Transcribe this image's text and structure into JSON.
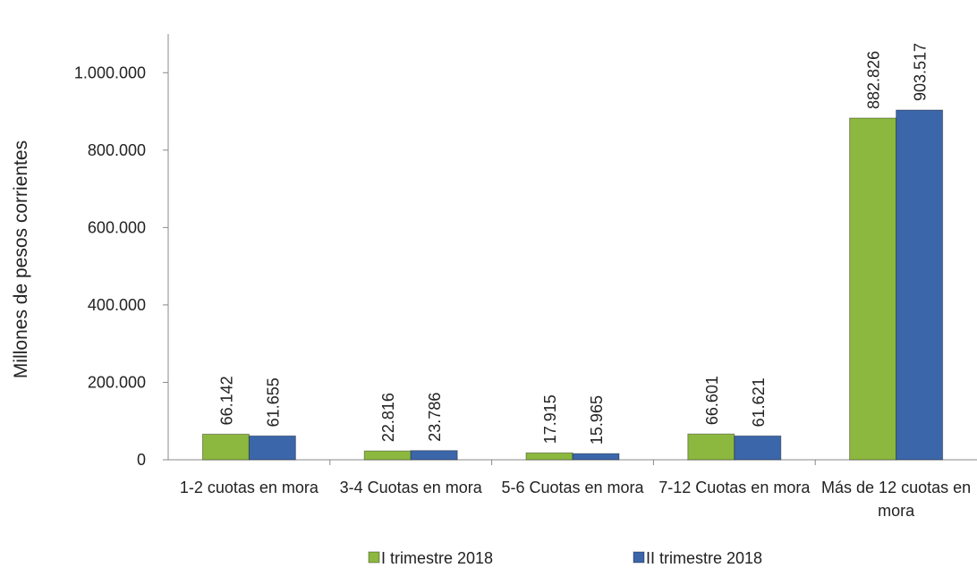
{
  "chart_data": {
    "type": "bar",
    "ylabel": "Millones de pesos corrientes",
    "categories": [
      "1-2 cuotas en mora",
      "3-4 Cuotas en mora",
      "5-6 Cuotas en mora",
      "7-12 Cuotas en mora",
      "Más de 12 cuotas en mora"
    ],
    "series": [
      {
        "name": "I trimestre 2018",
        "color": "#8db83f",
        "values": [
          66142,
          22816,
          17915,
          66601,
          882826
        ],
        "value_labels": [
          "66.142",
          "22.816",
          "17.915",
          "66.601",
          "882.826"
        ]
      },
      {
        "name": "II trimestre 2018",
        "color": "#3c66aa",
        "values": [
          61655,
          23786,
          15965,
          61621,
          903517
        ],
        "value_labels": [
          "61.655",
          "23.786",
          "15.965",
          "61.621",
          "903.517"
        ]
      }
    ],
    "ylim": [
      0,
      1100000
    ],
    "yticks": [
      0,
      {
        "value": 200000,
        "label": "200.000"
      },
      {
        "value": 400000,
        "label": "400.000"
      },
      {
        "value": 600000,
        "label": "600.000"
      },
      {
        "value": 800000,
        "label": "800.000"
      },
      {
        "value": 1000000,
        "label": "1.000.000"
      }
    ],
    "legend": "bottom"
  }
}
